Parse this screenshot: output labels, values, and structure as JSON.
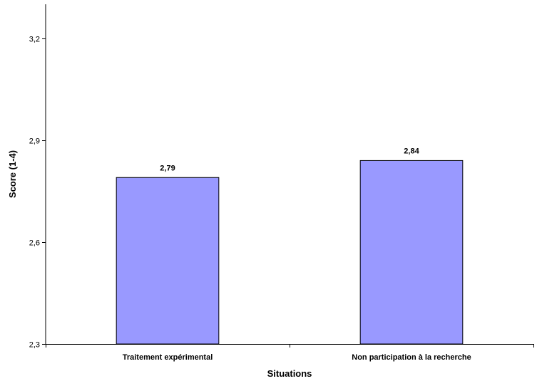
{
  "chart_data": {
    "type": "bar",
    "title": "",
    "xlabel": "Situations",
    "ylabel": "Score (1-4)",
    "categories": [
      "Traitement expérimental",
      "Non participation à la recherche"
    ],
    "values": [
      2.79,
      2.84
    ],
    "value_labels": [
      "2,79",
      "2,84"
    ],
    "ylim": [
      2.3,
      3.3
    ],
    "yticks": [
      2.3,
      2.6,
      2.9,
      3.2
    ],
    "ytick_labels": [
      "2,3",
      "2,6",
      "2,9",
      "3,2"
    ],
    "bar_color": "#9999ff",
    "bar_edge_color": "#000000",
    "grid": false,
    "legend": "none"
  }
}
